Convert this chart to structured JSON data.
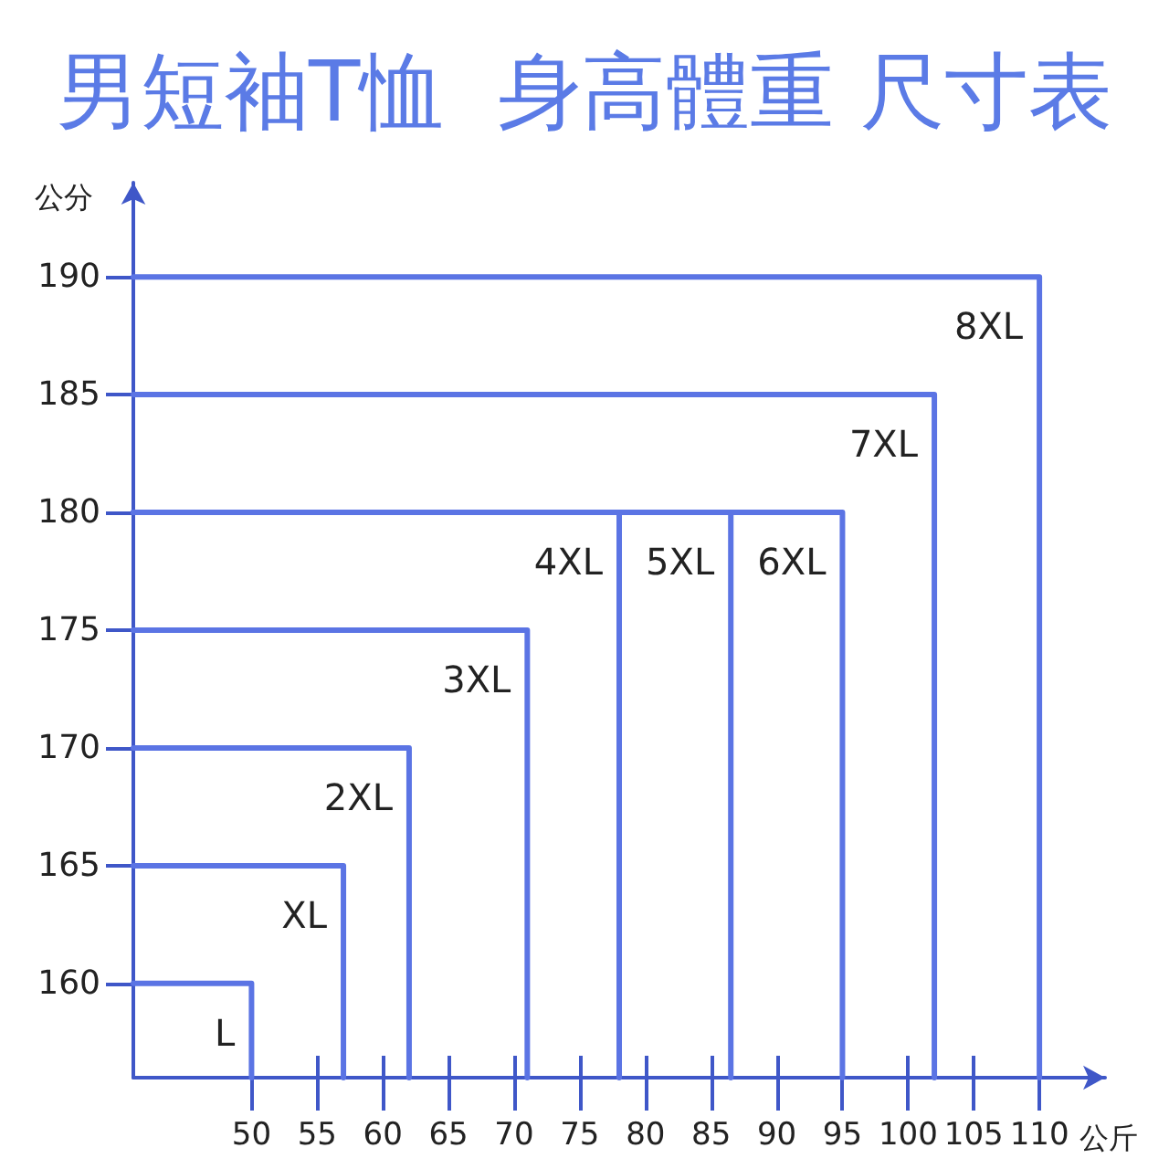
{
  "chart_data": {
    "type": "line",
    "title": "男短袖T恤  身高體重 尺寸表",
    "xlabel": "公斤",
    "ylabel": "公分",
    "xlim": [
      41,
      115
    ],
    "ylim": [
      156,
      194
    ],
    "xticks": [
      50,
      55,
      60,
      65,
      70,
      75,
      80,
      85,
      90,
      95,
      100,
      105,
      110
    ],
    "yticks": [
      160,
      165,
      170,
      175,
      180,
      185,
      190
    ],
    "grid": false,
    "legend": false,
    "marker": "none",
    "line_style": "solid",
    "series": [
      {
        "name": "L",
        "color": "#5b74e4",
        "x": [
          41,
          50,
          50
        ],
        "values": [
          160,
          160,
          156
        ]
      },
      {
        "name": "XL",
        "color": "#5b74e4",
        "x": [
          41,
          57,
          57
        ],
        "values": [
          165,
          165,
          156
        ]
      },
      {
        "name": "2XL",
        "color": "#5b74e4",
        "x": [
          41,
          62,
          62
        ],
        "values": [
          170,
          170,
          156
        ]
      },
      {
        "name": "3XL",
        "color": "#5b74e4",
        "x": [
          41,
          71,
          71
        ],
        "values": [
          175,
          175,
          156
        ]
      },
      {
        "name": "4XL",
        "color": "#5b74e4",
        "x": [
          41,
          78,
          78
        ],
        "values": [
          180,
          180,
          156
        ]
      },
      {
        "name": "5XL",
        "color": "#5b74e4",
        "x": [
          41,
          86.5,
          86.5
        ],
        "values": [
          180,
          180,
          156
        ]
      },
      {
        "name": "6XL",
        "color": "#5b74e4",
        "x": [
          41,
          95,
          95
        ],
        "values": [
          180,
          180,
          156
        ]
      },
      {
        "name": "7XL",
        "color": "#5b74e4",
        "x": [
          41,
          102,
          102
        ],
        "values": [
          185,
          185,
          156
        ]
      },
      {
        "name": "8XL",
        "color": "#5b74e4",
        "x": [
          41,
          110,
          110
        ],
        "values": [
          190,
          190,
          156
        ]
      }
    ]
  }
}
